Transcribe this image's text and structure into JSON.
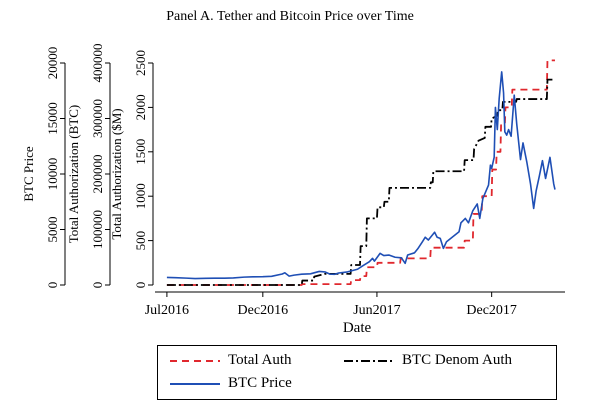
{
  "chart_data": {
    "type": "line",
    "title": "Panel A. Tether and Bitcoin Price over Time",
    "xlabel": "Date",
    "x_ticks": [
      "Jul2016",
      "Dec2016",
      "Jun2017",
      "Dec2017"
    ],
    "x_tick_positions": [
      "2016-07-01",
      "2016-12-01",
      "2017-06-01",
      "2017-12-01"
    ],
    "xlim": [
      "2016-06-20",
      "2018-03-20"
    ],
    "axes": [
      {
        "label": "BTC Price",
        "ylim": [
          0,
          20000
        ],
        "ticks": [
          0,
          5000,
          10000,
          15000,
          20000
        ]
      },
      {
        "label": "Total Authorization (BTC)",
        "ylim": [
          0,
          400000
        ],
        "ticks": [
          0,
          100000,
          200000,
          300000,
          400000
        ]
      },
      {
        "label": "Total Authorization ($M)",
        "ylim": [
          0,
          2500
        ],
        "ticks": [
          0,
          500,
          1000,
          1500,
          2000,
          2500
        ]
      }
    ],
    "series": [
      {
        "name": "Total Auth",
        "axis": "Total Authorization ($M)",
        "color": "#e0282e",
        "style": "dashed",
        "step": true,
        "points": [
          [
            "2016-07-01",
            0
          ],
          [
            "2017-02-01",
            0
          ],
          [
            "2017-02-02",
            10
          ],
          [
            "2017-04-20",
            10
          ],
          [
            "2017-04-21",
            55
          ],
          [
            "2017-05-05",
            55
          ],
          [
            "2017-05-06",
            100
          ],
          [
            "2017-05-15",
            100
          ],
          [
            "2017-05-16",
            200
          ],
          [
            "2017-06-01",
            200
          ],
          [
            "2017-06-02",
            250
          ],
          [
            "2017-07-08",
            250
          ],
          [
            "2017-07-09",
            300
          ],
          [
            "2017-08-25",
            300
          ],
          [
            "2017-08-26",
            420
          ],
          [
            "2017-10-18",
            420
          ],
          [
            "2017-10-19",
            500
          ],
          [
            "2017-11-01",
            500
          ],
          [
            "2017-11-02",
            800
          ],
          [
            "2017-11-15",
            800
          ],
          [
            "2017-11-16",
            1000
          ],
          [
            "2017-12-01",
            1000
          ],
          [
            "2017-12-02",
            1300
          ],
          [
            "2017-12-08",
            1300
          ],
          [
            "2017-12-09",
            1500
          ],
          [
            "2017-12-15",
            1500
          ],
          [
            "2017-12-16",
            1800
          ],
          [
            "2017-12-22",
            1800
          ],
          [
            "2017-12-23",
            2000
          ],
          [
            "2018-01-02",
            2000
          ],
          [
            "2018-01-03",
            2200
          ],
          [
            "2018-02-27",
            2200
          ],
          [
            "2018-02-28",
            2530
          ],
          [
            "2018-03-12",
            2530
          ]
        ]
      },
      {
        "name": "BTC Denom Auth",
        "axis": "Total Authorization (BTC)",
        "color": "#000000",
        "style": "dashdot",
        "step": true,
        "points": [
          [
            "2016-07-01",
            0
          ],
          [
            "2017-02-01",
            0
          ],
          [
            "2017-02-02",
            8000
          ],
          [
            "2017-02-20",
            8000
          ],
          [
            "2017-02-21",
            15000
          ],
          [
            "2017-03-10",
            20000
          ],
          [
            "2017-04-20",
            20000
          ],
          [
            "2017-04-21",
            36000
          ],
          [
            "2017-05-05",
            36000
          ],
          [
            "2017-05-06",
            70000
          ],
          [
            "2017-05-15",
            70000
          ],
          [
            "2017-05-16",
            120000
          ],
          [
            "2017-06-01",
            120000
          ],
          [
            "2017-06-02",
            140000
          ],
          [
            "2017-06-12",
            140000
          ],
          [
            "2017-06-13",
            150000
          ],
          [
            "2017-06-20",
            150000
          ],
          [
            "2017-06-21",
            175000
          ],
          [
            "2017-08-25",
            175000
          ],
          [
            "2017-08-26",
            185000
          ],
          [
            "2017-08-29",
            185000
          ],
          [
            "2017-08-30",
            205000
          ],
          [
            "2017-10-18",
            205000
          ],
          [
            "2017-10-19",
            225000
          ],
          [
            "2017-11-02",
            225000
          ],
          [
            "2017-11-03",
            245000
          ],
          [
            "2017-11-10",
            260000
          ],
          [
            "2017-11-20",
            265000
          ],
          [
            "2017-11-21",
            285000
          ],
          [
            "2017-11-30",
            285000
          ],
          [
            "2017-12-01",
            300000
          ],
          [
            "2017-12-10",
            305000
          ],
          [
            "2017-12-11",
            315000
          ],
          [
            "2017-12-18",
            315000
          ],
          [
            "2017-12-19",
            330000
          ],
          [
            "2018-01-09",
            330000
          ],
          [
            "2018-01-10",
            335000
          ],
          [
            "2018-02-27",
            335000
          ],
          [
            "2018-02-28",
            370000
          ],
          [
            "2018-03-12",
            370000
          ]
        ]
      },
      {
        "name": "BTC Price",
        "axis": "BTC Price",
        "color": "#1f4fb5",
        "style": "solid",
        "step": false,
        "points": [
          [
            "2016-07-01",
            680
          ],
          [
            "2016-07-15",
            660
          ],
          [
            "2016-08-01",
            620
          ],
          [
            "2016-08-15",
            580
          ],
          [
            "2016-09-01",
            600
          ],
          [
            "2016-09-15",
            610
          ],
          [
            "2016-10-01",
            615
          ],
          [
            "2016-10-15",
            640
          ],
          [
            "2016-11-01",
            710
          ],
          [
            "2016-11-15",
            740
          ],
          [
            "2016-12-01",
            750
          ],
          [
            "2016-12-15",
            780
          ],
          [
            "2017-01-01",
            990
          ],
          [
            "2017-01-05",
            1100
          ],
          [
            "2017-01-12",
            800
          ],
          [
            "2017-01-20",
            890
          ],
          [
            "2017-02-01",
            970
          ],
          [
            "2017-02-15",
            1010
          ],
          [
            "2017-03-01",
            1220
          ],
          [
            "2017-03-10",
            1180
          ],
          [
            "2017-03-18",
            980
          ],
          [
            "2017-03-25",
            960
          ],
          [
            "2017-04-01",
            1080
          ],
          [
            "2017-04-15",
            1180
          ],
          [
            "2017-05-01",
            1420
          ],
          [
            "2017-05-10",
            1750
          ],
          [
            "2017-05-20",
            2100
          ],
          [
            "2017-05-25",
            2400
          ],
          [
            "2017-05-28",
            2150
          ],
          [
            "2017-06-06",
            2850
          ],
          [
            "2017-06-12",
            2650
          ],
          [
            "2017-06-20",
            2700
          ],
          [
            "2017-06-30",
            2500
          ],
          [
            "2017-07-10",
            2450
          ],
          [
            "2017-07-16",
            1950
          ],
          [
            "2017-07-20",
            2700
          ],
          [
            "2017-07-31",
            2900
          ],
          [
            "2017-08-05",
            3250
          ],
          [
            "2017-08-12",
            3850
          ],
          [
            "2017-08-17",
            4300
          ],
          [
            "2017-08-22",
            4050
          ],
          [
            "2017-09-01",
            4750
          ],
          [
            "2017-09-05",
            4300
          ],
          [
            "2017-09-10",
            4200
          ],
          [
            "2017-09-15",
            3300
          ],
          [
            "2017-09-20",
            3900
          ],
          [
            "2017-09-30",
            4350
          ],
          [
            "2017-10-10",
            4800
          ],
          [
            "2017-10-13",
            5600
          ],
          [
            "2017-10-20",
            6000
          ],
          [
            "2017-10-25",
            5600
          ],
          [
            "2017-11-01",
            6700
          ],
          [
            "2017-11-08",
            7300
          ],
          [
            "2017-11-12",
            6000
          ],
          [
            "2017-11-17",
            7800
          ],
          [
            "2017-11-26",
            9000
          ],
          [
            "2017-11-29",
            10800
          ],
          [
            "2017-12-01",
            10500
          ],
          [
            "2017-12-05",
            11500
          ],
          [
            "2017-12-07",
            16000
          ],
          [
            "2017-12-10",
            14000
          ],
          [
            "2017-12-13",
            16800
          ],
          [
            "2017-12-17",
            19200
          ],
          [
            "2017-12-20",
            17300
          ],
          [
            "2017-12-22",
            13800
          ],
          [
            "2017-12-25",
            13500
          ],
          [
            "2017-12-28",
            14000
          ],
          [
            "2018-01-01",
            13400
          ],
          [
            "2018-01-06",
            17100
          ],
          [
            "2018-01-10",
            14500
          ],
          [
            "2018-01-16",
            11300
          ],
          [
            "2018-01-20",
            12800
          ],
          [
            "2018-01-26",
            11100
          ],
          [
            "2018-02-01",
            9100
          ],
          [
            "2018-02-06",
            6900
          ],
          [
            "2018-02-10",
            8500
          ],
          [
            "2018-02-15",
            9800
          ],
          [
            "2018-02-20",
            11200
          ],
          [
            "2018-02-25",
            9600
          ],
          [
            "2018-03-04",
            11500
          ],
          [
            "2018-03-10",
            9100
          ],
          [
            "2018-03-12",
            8600
          ]
        ]
      }
    ],
    "legend": {
      "placement": "bottom",
      "entries": [
        "Total Auth",
        "BTC Denom Auth",
        "BTC Price"
      ]
    }
  }
}
